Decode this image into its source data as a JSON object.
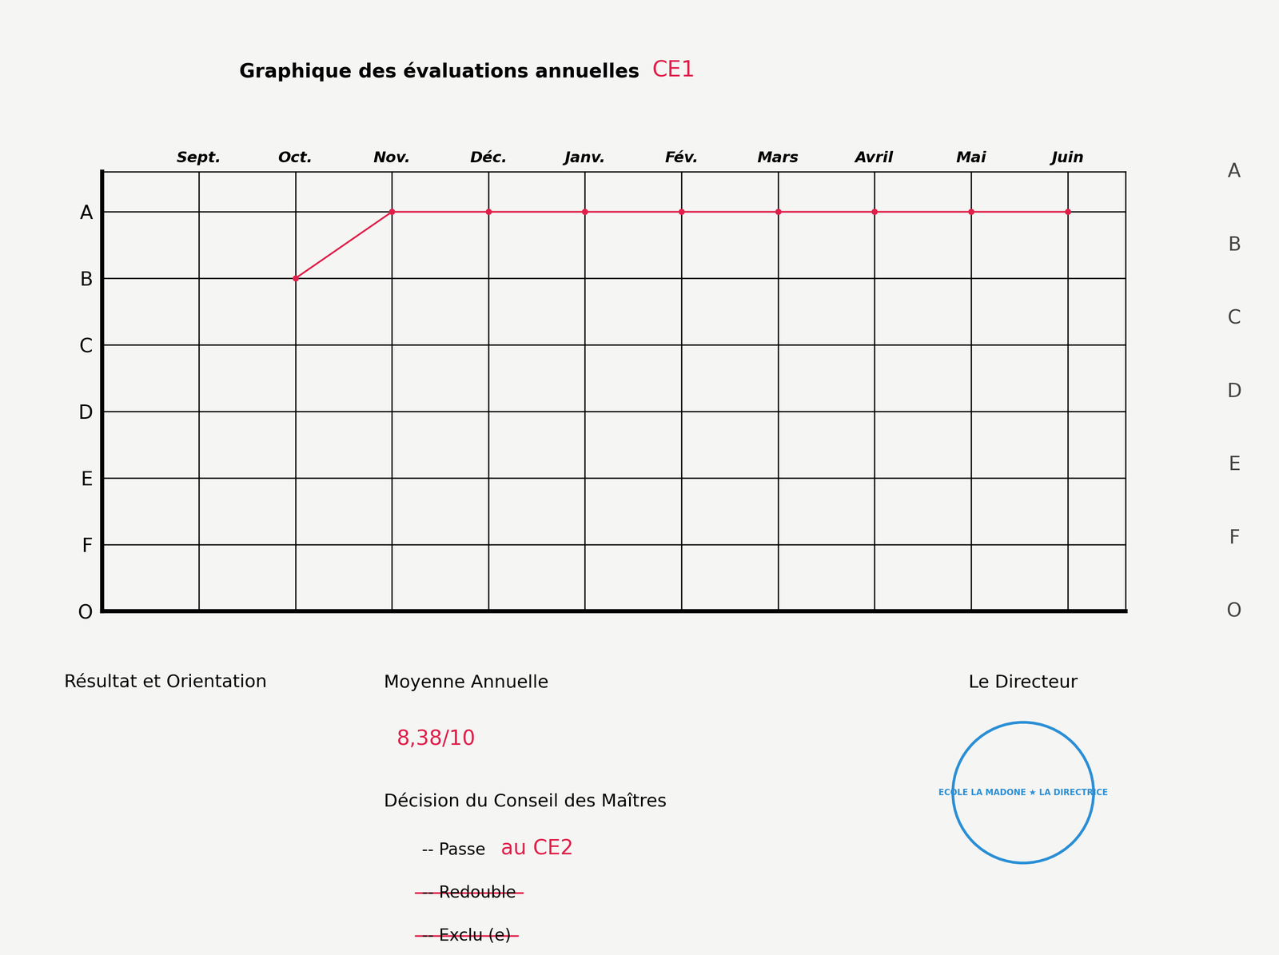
{
  "chart_data": {
    "type": "line",
    "title": "Graphique des évaluations annuelles",
    "title_suffix": "CE1",
    "categories": [
      "Sept.",
      "Oct.",
      "Nov.",
      "Déc.",
      "Janv.",
      "Fév.",
      "Mars",
      "Avril",
      "Mai",
      "Juin"
    ],
    "y_categories": [
      "O",
      "F",
      "E",
      "D",
      "C",
      "B",
      "A"
    ],
    "values": [
      null,
      "B",
      "A",
      "A",
      "A",
      "A",
      "A",
      "A",
      "A",
      "A"
    ],
    "color": "#e0204a",
    "marker": "circle",
    "line_style": "solid",
    "grid": true
  },
  "document": {
    "result_heading": "Résultat et Orientation",
    "average": {
      "label": "Moyenne Annuelle",
      "value": "8,38/10"
    },
    "decision": {
      "label": "Décision du Conseil des Maîtres",
      "options": [
        {
          "text": "-- Passe",
          "note": "au CE2",
          "struck": false
        },
        {
          "text": "-- Redouble",
          "struck": true
        },
        {
          "text": "-- Exclu (e)",
          "struck": true
        }
      ]
    },
    "signatory": "Le Directeur",
    "stamp": "ECOLE LA MADONE ★ LA DIRECTRICE",
    "facing_page_labels": [
      "A",
      "B",
      "C",
      "D",
      "E",
      "F",
      "O"
    ]
  }
}
